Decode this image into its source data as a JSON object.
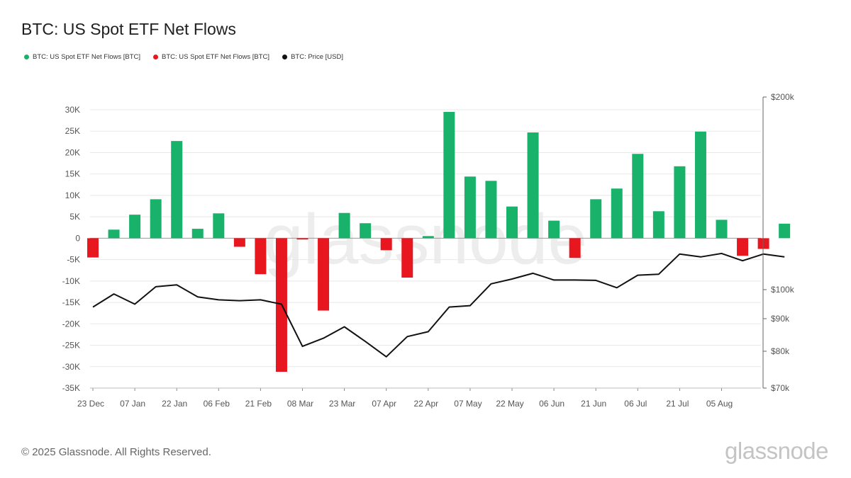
{
  "chart_data": {
    "type": "bar",
    "title": "BTC: US Spot ETF Net Flows",
    "legend": [
      {
        "label": "BTC: US Spot ETF Net Flows [BTC]",
        "color": "#18b26b"
      },
      {
        "label": "BTC: US Spot ETF Net Flows [BTC]",
        "color": "#e8161e"
      },
      {
        "label": "BTC: Price [USD]",
        "color": "#111111"
      }
    ],
    "colors": {
      "positive": "#18b26b",
      "negative": "#e8161e",
      "price": "#111111",
      "grid": "#e8e8e8"
    },
    "ylim": [
      -35000,
      30000
    ],
    "y_ticks": [
      {
        "value": 30000,
        "label": "30K"
      },
      {
        "value": 25000,
        "label": "25K"
      },
      {
        "value": 20000,
        "label": "20K"
      },
      {
        "value": 15000,
        "label": "15K"
      },
      {
        "value": 10000,
        "label": "10K"
      },
      {
        "value": 5000,
        "label": "5K"
      },
      {
        "value": 0,
        "label": "0"
      },
      {
        "value": -5000,
        "label": "-5K"
      },
      {
        "value": -10000,
        "label": "-10K"
      },
      {
        "value": -15000,
        "label": "-15K"
      },
      {
        "value": -20000,
        "label": "-20K"
      },
      {
        "value": -25000,
        "label": "-25K"
      },
      {
        "value": -30000,
        "label": "-30K"
      },
      {
        "value": -35000,
        "label": "-35K"
      }
    ],
    "y2_ticks": [
      {
        "value": 200000,
        "label": "$200k"
      },
      {
        "value": 100000,
        "label": "$100k"
      },
      {
        "value": 90000,
        "label": "$90k"
      },
      {
        "value": 80000,
        "label": "$80k"
      },
      {
        "value": 70000,
        "label": "$70k"
      }
    ],
    "x_ticks": [
      "23 Dec",
      "07 Jan",
      "22 Jan",
      "06 Feb",
      "21 Feb",
      "08 Mar",
      "23 Mar",
      "07 Apr",
      "22 Apr",
      "07 May",
      "22 May",
      "06 Jun",
      "21 Jun",
      "06 Jul",
      "21 Jul",
      "05 Aug"
    ],
    "bars": [
      -4500,
      2000,
      5500,
      9100,
      22700,
      2200,
      5800,
      -2000,
      -8400,
      -31200,
      -300,
      -16900,
      5900,
      3500,
      -2800,
      -9200,
      500,
      29500,
      14400,
      13400,
      7400,
      24700,
      4100,
      -4600,
      9100,
      11600,
      19700,
      6300,
      16800,
      24900,
      4300,
      -4100,
      -2500,
      3400
    ],
    "price": [
      94000,
      98500,
      95000,
      101500,
      102500,
      97500,
      96500,
      96200,
      96500,
      95000,
      81500,
      84000,
      87500,
      83000,
      78500,
      84500,
      86000,
      94000,
      94500,
      103000,
      105500,
      108500,
      105000,
      105000,
      104800,
      101000,
      107500,
      108000,
      118500,
      117000,
      118800,
      115000,
      118500,
      117000
    ]
  },
  "footer": {
    "copyright": "© 2025 Glassnode. All Rights Reserved.",
    "brand": "glassnode",
    "watermark": "glassnode"
  }
}
